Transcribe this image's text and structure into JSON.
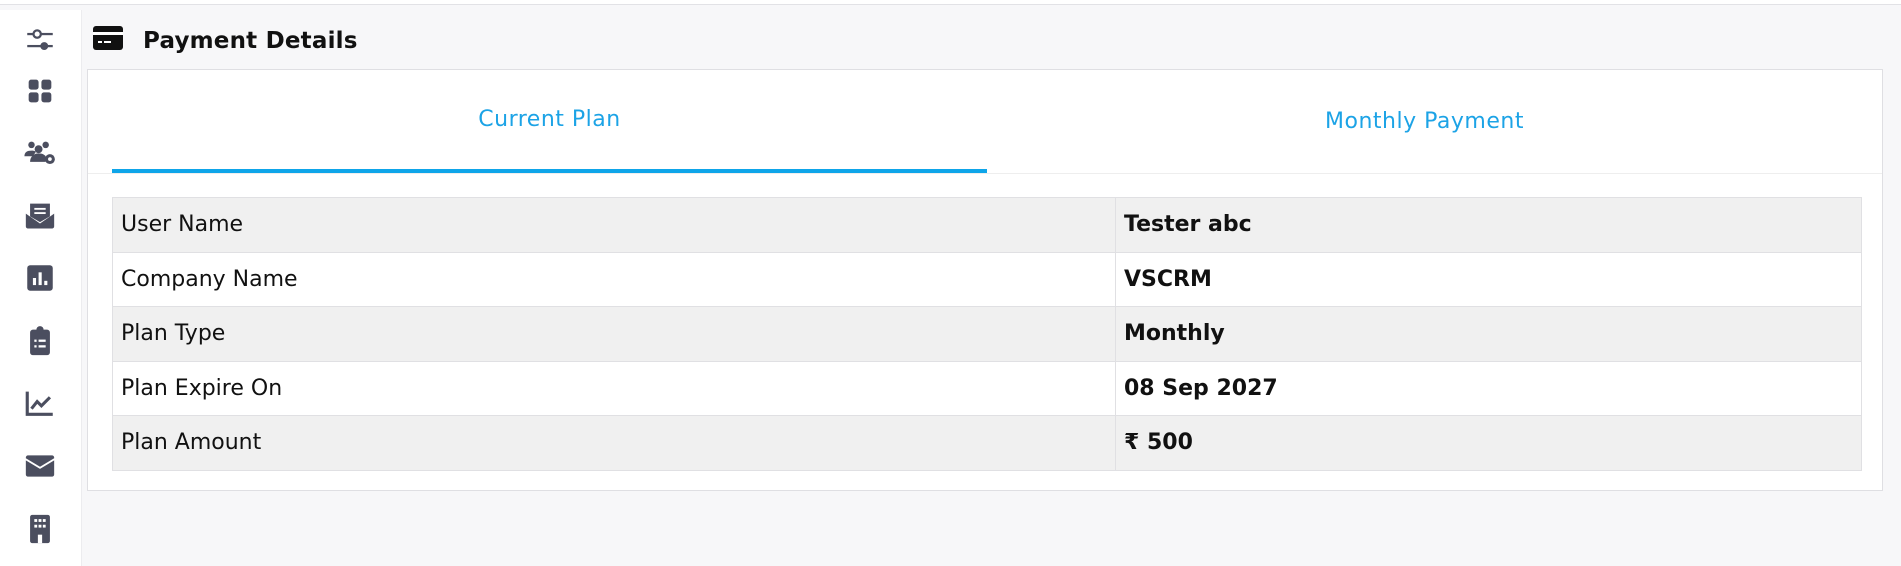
{
  "header": {
    "title": "Payment Details",
    "icon": "credit-card-icon"
  },
  "sidebar": {
    "items": [
      {
        "icon": "sliders-icon"
      },
      {
        "icon": "grid-icon"
      },
      {
        "icon": "users-gear-icon"
      },
      {
        "icon": "envelope-open-icon"
      },
      {
        "icon": "bar-chart-icon"
      },
      {
        "icon": "clipboard-list-icon"
      },
      {
        "icon": "line-chart-icon"
      },
      {
        "icon": "envelope-icon"
      },
      {
        "icon": "building-icon"
      }
    ]
  },
  "tabs": [
    {
      "label": "Current Plan",
      "active": true
    },
    {
      "label": "Monthly Payment",
      "active": false
    }
  ],
  "details": [
    {
      "label": "User Name",
      "value": "Tester abc"
    },
    {
      "label": "Company Name",
      "value": "VSCRM"
    },
    {
      "label": "Plan Type",
      "value": "Monthly"
    },
    {
      "label": "Plan Expire On",
      "value": "08 Sep 2027"
    },
    {
      "label": "Plan Amount",
      "value": "₹ 500"
    }
  ],
  "colors": {
    "accent": "#0ea5e9",
    "tab_text": "#1ca3e6",
    "sidebar_icon": "#4b4e5f",
    "background": "#f7f7f9"
  }
}
